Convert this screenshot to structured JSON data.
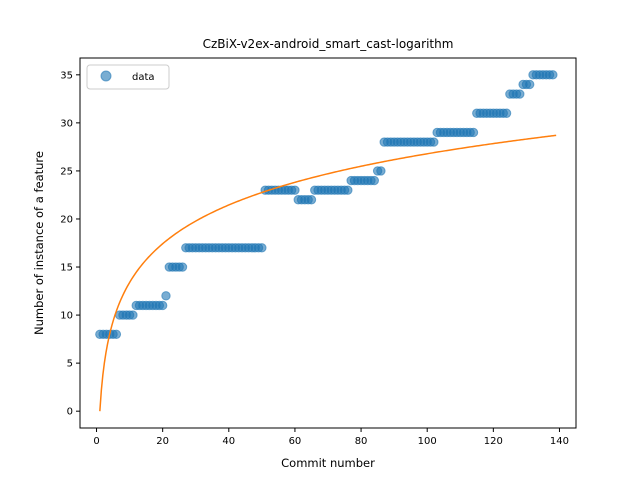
{
  "chart_data": {
    "type": "scatter",
    "title": "CzBiX-v2ex-android_smart_cast-logarithm",
    "xlabel": "Commit number",
    "ylabel": "Number of instance of a feature",
    "xlim": [
      -5,
      145
    ],
    "ylim": [
      -1.75,
      36.75
    ],
    "xticks": [
      0,
      20,
      40,
      60,
      80,
      100,
      120,
      140
    ],
    "yticks": [
      0,
      5,
      10,
      15,
      20,
      25,
      30,
      35
    ],
    "legend": {
      "position": "top-left",
      "entries": [
        "data"
      ]
    },
    "colors": {
      "data": "#1f77b4",
      "fit": "#ff7f0e"
    },
    "series": [
      {
        "name": "data",
        "kind": "scatter",
        "x": [
          1,
          2,
          3,
          4,
          5,
          6,
          7,
          8,
          9,
          10,
          11,
          12,
          13,
          14,
          15,
          16,
          17,
          18,
          19,
          20,
          21,
          22,
          23,
          24,
          25,
          26,
          27,
          28,
          29,
          30,
          31,
          32,
          33,
          34,
          35,
          36,
          37,
          38,
          39,
          40,
          41,
          42,
          43,
          44,
          45,
          46,
          47,
          48,
          49,
          50,
          51,
          52,
          53,
          54,
          55,
          56,
          57,
          58,
          59,
          60,
          61,
          62,
          63,
          64,
          65,
          66,
          67,
          68,
          69,
          70,
          71,
          72,
          73,
          74,
          75,
          76,
          77,
          78,
          79,
          80,
          81,
          82,
          83,
          84,
          85,
          86,
          87,
          88,
          89,
          90,
          91,
          92,
          93,
          94,
          95,
          96,
          97,
          98,
          99,
          100,
          101,
          102,
          103,
          104,
          105,
          106,
          107,
          108,
          109,
          110,
          111,
          112,
          113,
          114,
          115,
          116,
          117,
          118,
          119,
          120,
          121,
          122,
          123,
          124,
          125,
          126,
          127,
          128,
          129,
          130,
          131,
          132,
          133,
          134,
          135,
          136,
          137,
          138
        ],
        "y": [
          8,
          8,
          8,
          8,
          8,
          8,
          10,
          10,
          10,
          10,
          10,
          11,
          11,
          11,
          11,
          11,
          11,
          11,
          11,
          11,
          12,
          15,
          15,
          15,
          15,
          15,
          17,
          17,
          17,
          17,
          17,
          17,
          17,
          17,
          17,
          17,
          17,
          17,
          17,
          17,
          17,
          17,
          17,
          17,
          17,
          17,
          17,
          17,
          17,
          17,
          23,
          23,
          23,
          23,
          23,
          23,
          23,
          23,
          23,
          23,
          22,
          22,
          22,
          22,
          22,
          23,
          23,
          23,
          23,
          23,
          23,
          23,
          23,
          23,
          23,
          23,
          24,
          24,
          24,
          24,
          24,
          24,
          24,
          24,
          25,
          25,
          28,
          28,
          28,
          28,
          28,
          28,
          28,
          28,
          28,
          28,
          28,
          28,
          28,
          28,
          28,
          28,
          29,
          29,
          29,
          29,
          29,
          29,
          29,
          29,
          29,
          29,
          29,
          29,
          31,
          31,
          31,
          31,
          31,
          31,
          31,
          31,
          31,
          31,
          33,
          33,
          33,
          33,
          34,
          34,
          34,
          35,
          35,
          35,
          35,
          35,
          35,
          35
        ]
      },
      {
        "name": "fit",
        "kind": "line",
        "function": "logarithm",
        "x_start": 1,
        "x_end": 139,
        "y_start": 0,
        "y_end": 28.7
      }
    ]
  }
}
